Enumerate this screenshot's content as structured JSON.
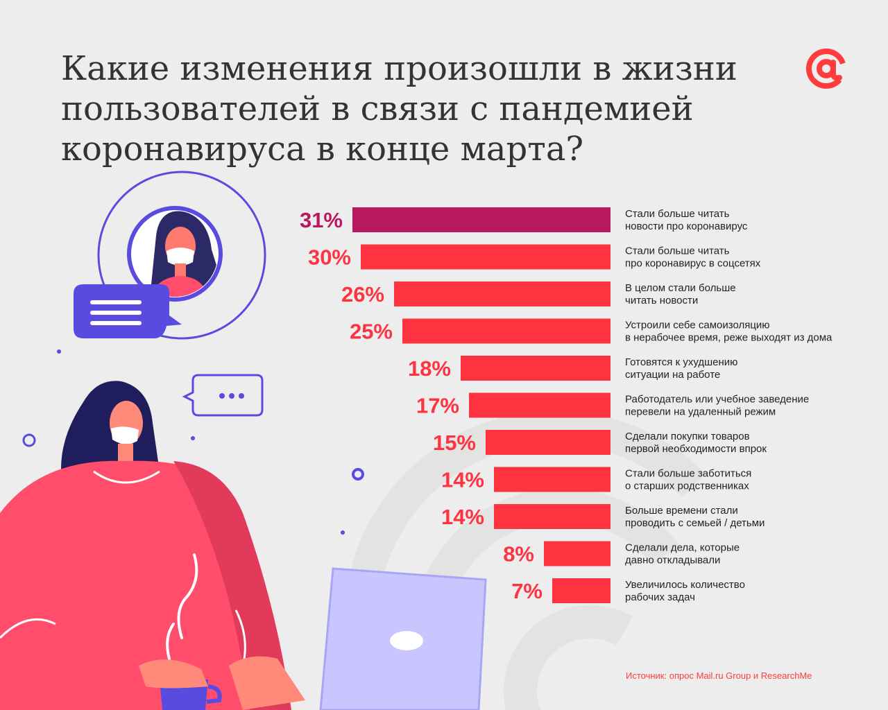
{
  "header": {
    "title_lines": [
      "Какие изменения произошли в жизни",
      "пользователей в связи с пандемией",
      "коронавируса в конце марта?"
    ]
  },
  "logo": {
    "icon": "at-sign-icon",
    "color": "#ff3c3c"
  },
  "source": "Источник: опрос Mail.ru Group и ResearchMe",
  "colors": {
    "highlight": "#b8185f",
    "bar": "#ff3340",
    "text": "#222222"
  },
  "chart_data": {
    "type": "bar",
    "orientation": "horizontal",
    "title": "Какие изменения произошли в жизни пользователей в связи с пандемией коронавируса в конце марта?",
    "xlabel": "",
    "ylabel": "",
    "unit": "%",
    "grid": false,
    "legend": "none",
    "categories": [
      [
        "Стали больше читать",
        "новости про коронавирус"
      ],
      [
        "Стали больше читать",
        "про коронавирус в соцсетях"
      ],
      [
        "В целом стали больше",
        "читать новости"
      ],
      [
        "Устроили себе самоизоляцию",
        "в нерабочее время, реже выходят из дома"
      ],
      [
        "Готовятся к ухудшению",
        "ситуации на работе"
      ],
      [
        "Работодатель или учебное заведение",
        "перевели на удаленный режим"
      ],
      [
        "Сделали покупки товаров",
        "первой необходимости впрок"
      ],
      [
        "Стали больше заботиться",
        "о старших родственниках"
      ],
      [
        "Больше времени стали",
        "проводить с семьей / детьми"
      ],
      [
        "Сделали дела, которые",
        "давно откладывали"
      ],
      [
        "Увеличилось количество",
        "рабочих задач"
      ]
    ],
    "values": [
      31,
      30,
      26,
      25,
      18,
      17,
      15,
      14,
      14,
      8,
      7
    ],
    "value_labels": [
      "31%",
      "30%",
      "26%",
      "25%",
      "18%",
      "17%",
      "15%",
      "14%",
      "14%",
      "8%",
      "7%"
    ],
    "xlim": [
      0,
      32
    ]
  }
}
